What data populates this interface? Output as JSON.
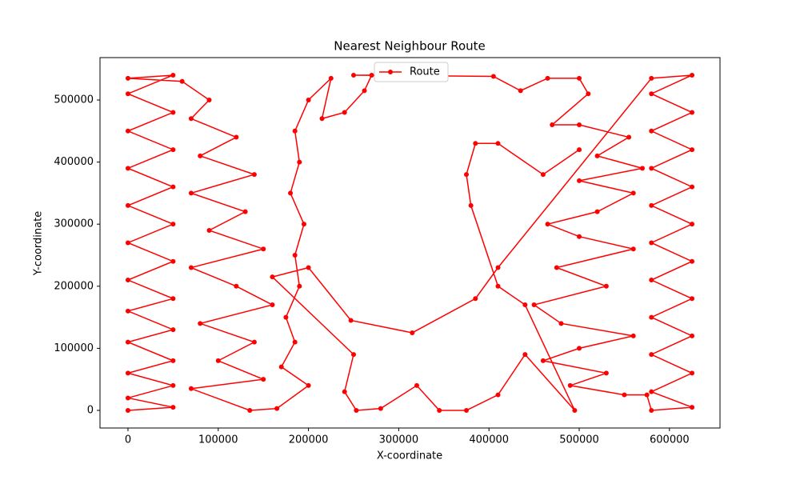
{
  "chart_data": {
    "type": "line",
    "title": "Nearest Neighbour Route",
    "x_label": "X-coordinate",
    "y_label": "Y-coordinate",
    "legend": "upper center",
    "grid": false,
    "xlim": [
      -31000,
      656000
    ],
    "ylim": [
      -28400,
      568300
    ],
    "xticks": [
      0,
      100000,
      200000,
      300000,
      400000,
      500000,
      600000
    ],
    "yticks": [
      0,
      100000,
      200000,
      300000,
      400000,
      500000
    ],
    "series": [
      {
        "name": "Route",
        "color": "#ff0000",
        "x": [
          0,
          50000,
          0,
          50000,
          0,
          50000,
          0,
          50000,
          0,
          50000,
          0,
          50000,
          0,
          50000,
          0,
          50000,
          0,
          50000,
          0,
          50000,
          0,
          50000,
          0,
          60000,
          90000,
          70000,
          120000,
          80000,
          140000,
          70000,
          130000,
          90000,
          150000,
          70000,
          120000,
          160000,
          80000,
          140000,
          100000,
          150000,
          70000,
          135000,
          165000,
          200000,
          170000,
          185000,
          175000,
          190000,
          185000,
          195000,
          180000,
          190000,
          185000,
          200000,
          225000,
          215000,
          240000,
          262000,
          270000,
          250000,
          405000,
          435000,
          465000,
          500000,
          510000,
          470000,
          500000,
          555000,
          520000,
          570000,
          500000,
          560000,
          520000,
          465000,
          500000,
          560000,
          475000,
          530000,
          450000,
          480000,
          560000,
          500000,
          460000,
          530000,
          490000,
          550000,
          575000,
          580000,
          625000,
          580000,
          625000,
          580000,
          625000,
          580000,
          625000,
          580000,
          625000,
          580000,
          625000,
          580000,
          625000,
          580000,
          625000,
          580000,
          625000,
          580000,
          625000,
          580000,
          410000,
          385000,
          315000,
          247000,
          200000,
          160000,
          250000,
          240000,
          253000,
          280000,
          320000,
          345000,
          375000,
          410000,
          440000,
          495000,
          440000,
          410000,
          380000,
          375000,
          385000,
          410000,
          460000,
          500000
        ],
        "values": [
          0,
          5000,
          20000,
          40000,
          60000,
          80000,
          110000,
          130000,
          160000,
          180000,
          210000,
          240000,
          270000,
          300000,
          330000,
          360000,
          390000,
          420000,
          450000,
          480000,
          510000,
          540000,
          535000,
          530000,
          500000,
          470000,
          440000,
          410000,
          380000,
          350000,
          320000,
          290000,
          260000,
          230000,
          200000,
          170000,
          140000,
          110000,
          80000,
          50000,
          35000,
          0,
          3000,
          40000,
          70000,
          110000,
          150000,
          200000,
          250000,
          300000,
          350000,
          400000,
          450000,
          500000,
          535000,
          470000,
          480000,
          515000,
          540000,
          540000,
          538000,
          515000,
          535000,
          535000,
          510000,
          460000,
          460000,
          440000,
          410000,
          390000,
          370000,
          350000,
          320000,
          300000,
          280000,
          260000,
          230000,
          200000,
          170000,
          140000,
          120000,
          100000,
          80000,
          60000,
          40000,
          25000,
          25000,
          0,
          5000,
          30000,
          60000,
          90000,
          120000,
          150000,
          180000,
          210000,
          240000,
          270000,
          300000,
          330000,
          360000,
          390000,
          420000,
          450000,
          480000,
          510000,
          540000,
          535000,
          230000,
          180000,
          125000,
          145000,
          230000,
          215000,
          90000,
          30000,
          0,
          3000,
          40000,
          0,
          0,
          25000,
          90000,
          0,
          170000,
          200000,
          330000,
          380000,
          430000,
          430000,
          380000,
          420000
        ]
      }
    ]
  }
}
